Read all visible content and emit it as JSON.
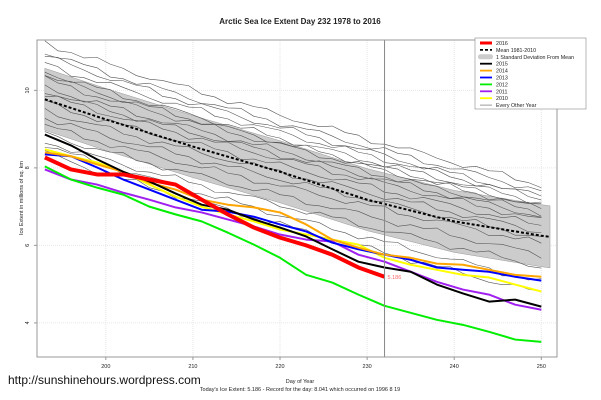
{
  "chart_data": {
    "type": "line",
    "title": "Arctic Sea Ice Extent Day 232 1978 to 2016",
    "xlabel": "Day of Year",
    "ylabel": "Ice Extent in millions of sq. km",
    "footnote": "Today's Ice Extent: 5.186  - Record for the day: 8.041 which occurred on 1996 8 19",
    "xlim": [
      192.1,
      251.8
    ],
    "ylim": [
      3.12,
      11.3
    ],
    "xticks": [
      200,
      210,
      220,
      230,
      240,
      250
    ],
    "yticks": [
      4,
      6,
      8,
      10
    ],
    "grid": true,
    "legend_position": "top-right",
    "current_day_marker": 232,
    "current_value_label": "5.186",
    "legend": [
      {
        "label": "2016",
        "color": "#ff0000",
        "style": "thick"
      },
      {
        "label": "Mean 1981-2010",
        "color": "#000000",
        "style": "dashed"
      },
      {
        "label": "1 Standard Deviation From Mean",
        "color": "#cccccc",
        "style": "band"
      },
      {
        "label": "2015",
        "color": "#000000",
        "style": "solid"
      },
      {
        "label": "2014",
        "color": "#ffa500",
        "style": "solid"
      },
      {
        "label": "2013",
        "color": "#0000ff",
        "style": "solid"
      },
      {
        "label": "2012",
        "color": "#00ee00",
        "style": "solid"
      },
      {
        "label": "2011",
        "color": "#a020f0",
        "style": "solid"
      },
      {
        "label": "2010",
        "color": "#ffff00",
        "style": "solid"
      },
      {
        "label": "Every Other Year",
        "color": "#808080",
        "style": "thin"
      }
    ],
    "mean": {
      "x": [
        193,
        200,
        210,
        220,
        230,
        240,
        250,
        251
      ],
      "y": [
        9.77,
        9.25,
        8.55,
        7.9,
        7.18,
        6.62,
        6.25,
        6.22
      ]
    },
    "std_dev": 0.8,
    "days": [
      193,
      196,
      199,
      202,
      205,
      208,
      211,
      214,
      217,
      220,
      223,
      226,
      229,
      232,
      235,
      238,
      241,
      244,
      247,
      250
    ],
    "series": [
      {
        "name": "2010",
        "color": "#ffff00",
        "values": [
          8.48,
          8.3,
          8.14,
          7.9,
          7.57,
          7.26,
          7.0,
          6.8,
          6.62,
          6.41,
          6.28,
          6.15,
          6.02,
          5.68,
          5.5,
          5.37,
          5.24,
          5.17,
          4.99,
          4.81
        ]
      },
      {
        "name": "2011",
        "color": "#a020f0",
        "values": [
          7.96,
          7.7,
          7.57,
          7.36,
          7.18,
          6.98,
          6.85,
          6.67,
          6.49,
          6.28,
          6.15,
          6.1,
          5.76,
          5.58,
          5.32,
          5.06,
          4.86,
          4.73,
          4.47,
          4.34
        ]
      },
      {
        "name": "2012",
        "color": "#00ee00",
        "values": [
          8.04,
          7.7,
          7.49,
          7.31,
          7.0,
          6.8,
          6.62,
          6.33,
          6.02,
          5.68,
          5.24,
          5.04,
          4.73,
          4.44,
          4.26,
          4.08,
          3.95,
          3.77,
          3.57,
          3.51
        ]
      },
      {
        "name": "2013",
        "color": "#0000ff",
        "values": [
          8.35,
          8.3,
          8.01,
          7.7,
          7.44,
          7.18,
          6.92,
          6.87,
          6.74,
          6.54,
          6.36,
          6.07,
          5.9,
          5.76,
          5.63,
          5.43,
          5.37,
          5.32,
          5.19,
          5.09
        ]
      },
      {
        "name": "2014",
        "color": "#ffa500",
        "values": [
          8.4,
          8.3,
          8.09,
          7.9,
          7.62,
          7.44,
          7.18,
          7.05,
          6.98,
          6.85,
          6.54,
          6.15,
          5.94,
          5.76,
          5.68,
          5.53,
          5.5,
          5.37,
          5.24,
          5.19
        ]
      },
      {
        "name": "2015",
        "color": "#000000",
        "values": [
          8.86,
          8.58,
          8.22,
          7.9,
          7.65,
          7.34,
          7.05,
          6.92,
          6.67,
          6.46,
          6.23,
          5.9,
          5.58,
          5.43,
          5.32,
          4.99,
          4.76,
          4.55,
          4.6,
          4.42
        ]
      },
      {
        "name": "2016",
        "color": "#ff0000",
        "values": [
          8.27,
          7.96,
          7.83,
          7.83,
          7.7,
          7.57,
          7.18,
          6.8,
          6.46,
          6.2,
          6.0,
          5.76,
          5.43,
          5.19
        ]
      }
    ],
    "every_other_year": [
      [
        11.25,
        7.5
      ],
      [
        11.0,
        7.35
      ],
      [
        10.9,
        7.2
      ],
      [
        10.7,
        7.15
      ],
      [
        10.5,
        7.05
      ],
      [
        10.4,
        6.95
      ],
      [
        10.3,
        6.9
      ],
      [
        10.1,
        6.8
      ],
      [
        10.0,
        6.7
      ],
      [
        9.9,
        6.6
      ],
      [
        9.7,
        6.45
      ],
      [
        9.5,
        6.3
      ],
      [
        9.3,
        6.15
      ],
      [
        9.1,
        6.0
      ],
      [
        8.9,
        5.7
      ],
      [
        8.7,
        5.4
      ],
      [
        8.6,
        5.0
      ],
      [
        8.4,
        4.7
      ]
    ]
  },
  "footer": {
    "site": "http://sunshinehours.wordpress.com"
  }
}
